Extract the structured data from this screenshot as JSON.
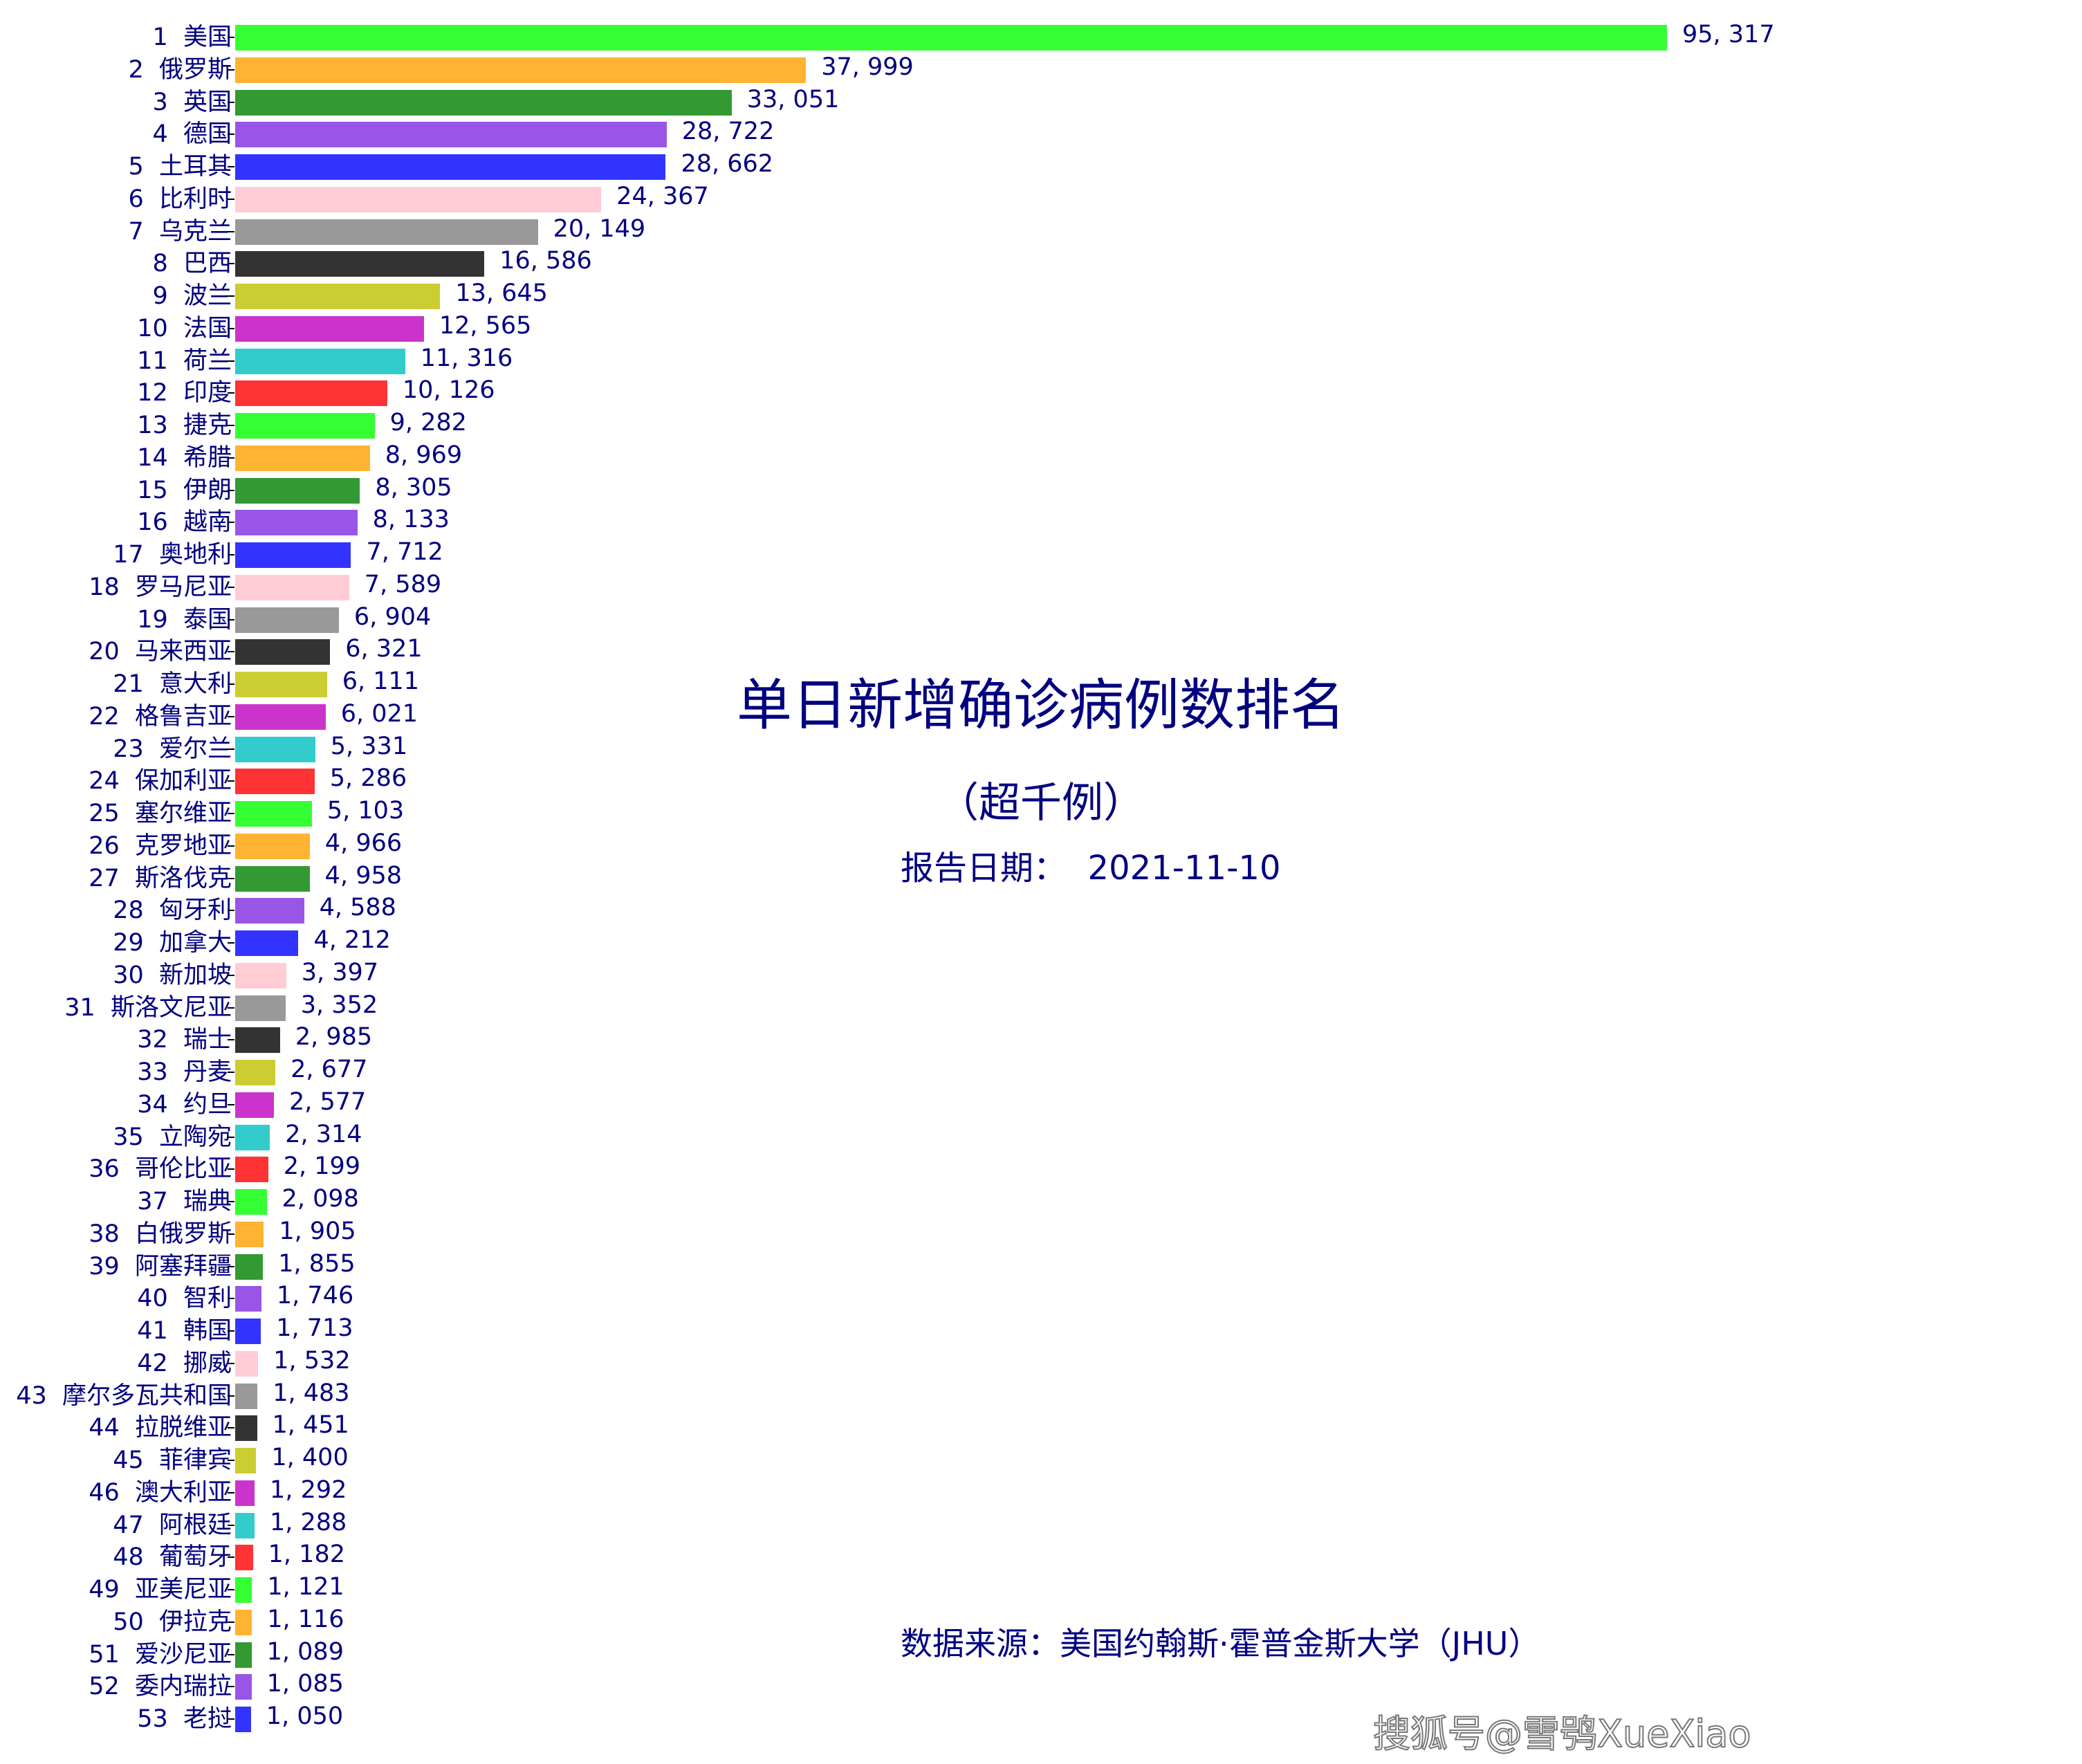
{
  "chart_data": {
    "type": "bar",
    "orientation": "horizontal",
    "title": "单日新增确诊病例数排名",
    "subtitle": "（超千例）",
    "date_label": "报告日期：",
    "date": "2021-11-10",
    "source": "数据来源：美国约翰斯·霍普金斯大学（JHU）",
    "grid": false,
    "categories": [
      "美国",
      "俄罗斯",
      "英国",
      "德国",
      "土耳其",
      "比利时",
      "乌克兰",
      "巴西",
      "波兰",
      "法国",
      "荷兰",
      "印度",
      "捷克",
      "希腊",
      "伊朗",
      "越南",
      "奥地利",
      "罗马尼亚",
      "泰国",
      "马来西亚",
      "意大利",
      "格鲁吉亚",
      "爱尔兰",
      "保加利亚",
      "塞尔维亚",
      "克罗地亚",
      "斯洛伐克",
      "匈牙利",
      "加拿大",
      "新加坡",
      "斯洛文尼亚",
      "瑞士",
      "丹麦",
      "约旦",
      "立陶宛",
      "哥伦比亚",
      "瑞典",
      "白俄罗斯",
      "阿塞拜疆",
      "智利",
      "韩国",
      "挪威",
      "摩尔多瓦共和国",
      "拉脱维亚",
      "菲律宾",
      "澳大利亚",
      "阿根廷",
      "葡萄牙",
      "亚美尼亚",
      "伊拉克",
      "爱沙尼亚",
      "委内瑞拉",
      "老挝"
    ],
    "values": [
      95317,
      37999,
      33051,
      28722,
      28662,
      24367,
      20149,
      16586,
      13645,
      12565,
      11316,
      10126,
      9282,
      8969,
      8305,
      8133,
      7712,
      7589,
      6904,
      6321,
      6111,
      6021,
      5331,
      5286,
      5103,
      4966,
      4958,
      4588,
      4212,
      3397,
      3352,
      2985,
      2677,
      2577,
      2314,
      2199,
      2098,
      1905,
      1855,
      1746,
      1713,
      1532,
      1483,
      1451,
      1400,
      1292,
      1288,
      1182,
      1121,
      1116,
      1089,
      1085,
      1050
    ],
    "value_labels": [
      "95, 317",
      "37, 999",
      "33, 051",
      "28, 722",
      "28, 662",
      "24, 367",
      "20, 149",
      "16, 586",
      "13, 645",
      "12, 565",
      "11, 316",
      "10, 126",
      "9, 282",
      "8, 969",
      "8, 305",
      "8, 133",
      "7, 712",
      "7, 589",
      "6, 904",
      "6, 321",
      "6, 111",
      "6, 021",
      "5, 331",
      "5, 286",
      "5, 103",
      "4, 966",
      "4, 958",
      "4, 588",
      "4, 212",
      "3, 397",
      "3, 352",
      "2, 985",
      "2, 677",
      "2, 577",
      "2, 314",
      "2, 199",
      "2, 098",
      "1, 905",
      "1, 855",
      "1, 746",
      "1, 713",
      "1, 532",
      "1, 483",
      "1, 451",
      "1, 400",
      "1, 292",
      "1, 288",
      "1, 182",
      "1, 121",
      "1, 116",
      "1, 089",
      "1, 085",
      "1, 050"
    ],
    "colors": [
      "#33ff33",
      "#ffb333",
      "#339933",
      "#9955e6",
      "#3333ff",
      "#ffccd5",
      "#999999",
      "#333333",
      "#cccc33",
      "#cc33cc",
      "#33cccc",
      "#ff3333"
    ],
    "text_color": "#000080"
  },
  "watermark": "搜狐号@雪鸮XueXiao"
}
